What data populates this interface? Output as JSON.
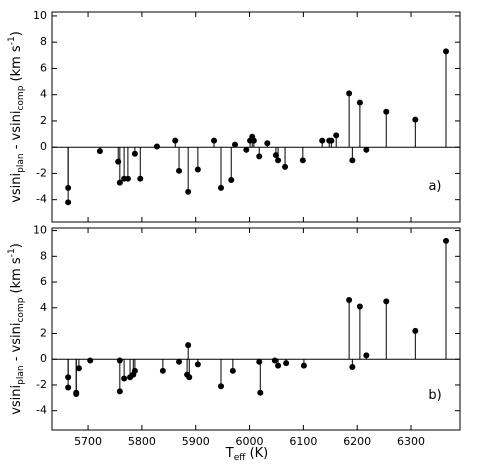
{
  "chart_data": [
    {
      "type": "stem",
      "panel_label": "a)",
      "color": "#000000",
      "x": [
        5663,
        5663,
        5722,
        5756,
        5759,
        5767,
        5774,
        5787,
        5797,
        5828,
        5862,
        5869,
        5886,
        5904,
        5934,
        5947,
        5966,
        5973,
        5994,
        6001,
        6005,
        6008,
        6018,
        6033,
        6049,
        6053,
        6066,
        6099,
        6135,
        6148,
        6152,
        6161,
        6185,
        6191,
        6205,
        6217,
        6254,
        6308,
        6365
      ],
      "values": [
        -3.1,
        -4.2,
        -0.3,
        -1.1,
        -2.7,
        -2.4,
        -2.4,
        -0.5,
        -2.4,
        0.05,
        0.5,
        -1.8,
        -3.4,
        -1.7,
        0.5,
        -3.1,
        -2.5,
        0.2,
        -0.2,
        0.5,
        0.8,
        0.5,
        -0.7,
        0.3,
        -0.6,
        -1.0,
        -1.5,
        -1.0,
        0.5,
        0.5,
        0.5,
        0.9,
        4.1,
        -1.0,
        3.4,
        -0.2,
        2.7,
        2.1,
        7.3
      ],
      "ylim": [
        -5.7,
        10.3
      ],
      "yticks": [
        -4,
        -2,
        0,
        2,
        4,
        6,
        8,
        10
      ],
      "y_label": [
        "vsini",
        "plan",
        " - vsini",
        "comp",
        "  (km s",
        "-1",
        ")"
      ]
    },
    {
      "type": "stem",
      "panel_label": "b)",
      "color": "#000000",
      "x": [
        5663,
        5663,
        5678,
        5678,
        5683,
        5704,
        5759,
        5759,
        5767,
        5778,
        5784,
        5787,
        5839,
        5869,
        5886,
        5884,
        5888,
        5904,
        5947,
        5969,
        6018,
        6020,
        6047,
        6053,
        6068,
        6101,
        6185,
        6191,
        6205,
        6217,
        6254,
        6308,
        6365
      ],
      "values": [
        -1.4,
        -2.2,
        -2.6,
        -2.7,
        -0.7,
        -0.1,
        -0.1,
        -2.5,
        -1.5,
        -1.4,
        -1.2,
        -0.9,
        -0.9,
        -0.2,
        1.1,
        -1.2,
        -1.4,
        -0.4,
        -2.1,
        -0.9,
        -0.2,
        -2.6,
        -0.1,
        -0.5,
        -0.3,
        -0.5,
        4.6,
        -0.6,
        4.1,
        0.3,
        4.5,
        2.2,
        9.2
      ],
      "ylim": [
        -5.5,
        10.2
      ],
      "yticks": [
        -4,
        -2,
        0,
        2,
        4,
        6,
        8,
        10
      ],
      "y_label": [
        "vsini",
        "plan",
        " - vsini",
        "comp",
        "  (km s",
        "-1",
        ")"
      ],
      "xlim": [
        5633,
        6391
      ],
      "xticks": [
        5700,
        5800,
        5900,
        6000,
        6100,
        6200,
        6300
      ],
      "x_label": [
        "T",
        "eff",
        " (K)"
      ]
    }
  ]
}
